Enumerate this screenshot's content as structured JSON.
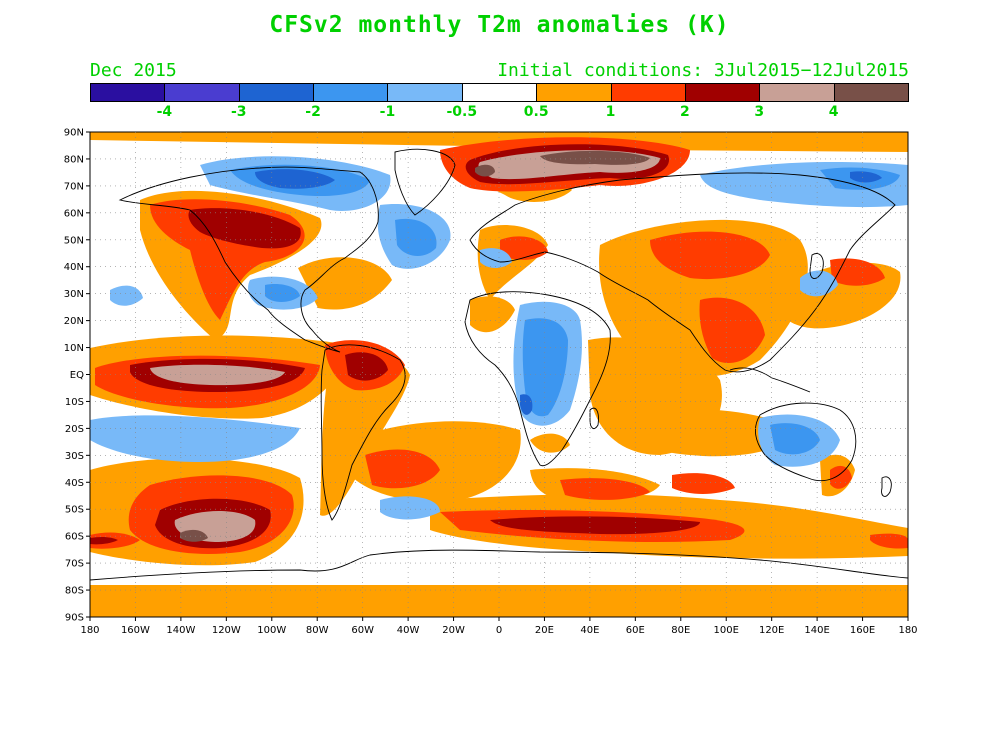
{
  "title": "CFSv2 monthly T2m anomalies (K)",
  "valid_month": "Dec 2015",
  "initial_conditions": "Initial conditions: 3Jul2015−12Jul2015",
  "colorbar": {
    "colors": [
      "#2a0fa0",
      "#4a3dd0",
      "#1e64d2",
      "#3c96f0",
      "#78b9f8",
      "#ffffff",
      "#ffa000",
      "#ff3c00",
      "#a00000",
      "#c8a096",
      "#785048"
    ],
    "labels": [
      "-4",
      "-3",
      "-2",
      "-1",
      "-0.5",
      "0.5",
      "1",
      "2",
      "3",
      "4"
    ]
  },
  "axes": {
    "lat_labels": [
      "90N",
      "80N",
      "70N",
      "60N",
      "50N",
      "40N",
      "30N",
      "20N",
      "10N",
      "EQ",
      "10S",
      "20S",
      "30S",
      "40S",
      "50S",
      "60S",
      "70S",
      "80S",
      "90S"
    ],
    "lon_labels": [
      "180",
      "160W",
      "140W",
      "120W",
      "100W",
      "80W",
      "60W",
      "40W",
      "20W",
      "0",
      "20E",
      "40E",
      "60E",
      "80E",
      "100E",
      "120E",
      "140E",
      "160E",
      "180"
    ]
  },
  "palette": {
    "cold1": "#78b9f8",
    "cold2": "#3c96f0",
    "cold3": "#1e64d2",
    "warm1": "#ffa000",
    "warm2": "#ff3c00",
    "warm3": "#a00000",
    "warm4": "#c8a096",
    "warm5": "#785048",
    "title_green": "#00d000"
  }
}
